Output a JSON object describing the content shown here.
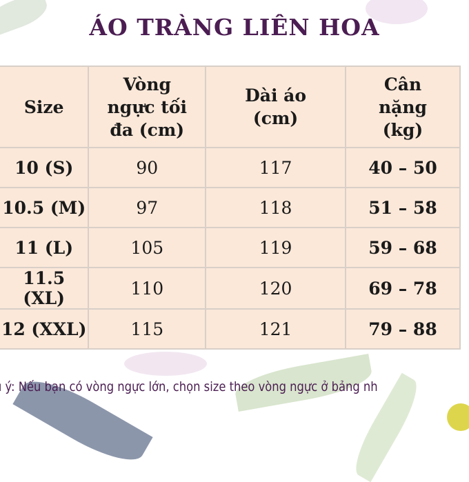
{
  "title": "ÁO TRÀNG LIÊN HOA",
  "colors": {
    "title": "#4b1d52",
    "table_bg": "#fbe8d9",
    "note": "#4b1d52"
  },
  "table": {
    "headers": [
      "Size",
      "Vòng ngực tối đa (cm)",
      "Dài áo (cm)",
      "Cân nặng (kg)"
    ],
    "rows": [
      [
        "10 (S)",
        "90",
        "117",
        "40 – 50"
      ],
      [
        "10.5 (M)",
        "97",
        "118",
        "51 – 58"
      ],
      [
        "11 (L)",
        "105",
        "119",
        "59 – 68"
      ],
      [
        "11.5 (XL)",
        "110",
        "120",
        "69 – 78"
      ],
      [
        "12 (XXL)",
        "115",
        "121",
        "79 – 88"
      ]
    ]
  },
  "note": "u ý: Nếu bạn có vòng ngực lớn, chọn size theo vòng ngực ở bảng nh"
}
